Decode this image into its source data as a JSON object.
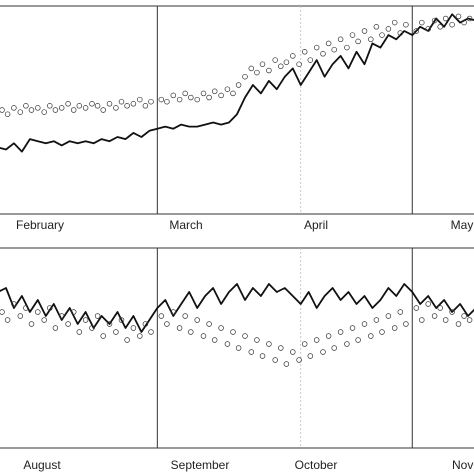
{
  "figure": {
    "colors": {
      "line": "#111111",
      "points": "#333333"
    }
  },
  "chart_data": [
    {
      "type": "line",
      "title": "",
      "xlabel": "",
      "ylabel": "",
      "categories": [
        "February",
        "March",
        "April",
        "May"
      ],
      "xlim": [
        0,
        60
      ],
      "ylim": [
        0,
        100
      ],
      "grid": false,
      "dividers": [
        {
          "at": 20,
          "style": "solid"
        },
        {
          "at": 38,
          "style": "faint"
        },
        {
          "at": 52,
          "style": "solid"
        }
      ],
      "series": [
        {
          "kind": "line",
          "values": [
            [
              0,
              32
            ],
            [
              1,
              31
            ],
            [
              2,
              34
            ],
            [
              3,
              30
            ],
            [
              4,
              36
            ],
            [
              5,
              35
            ],
            [
              6,
              34
            ],
            [
              7,
              35
            ],
            [
              8,
              33
            ],
            [
              9,
              35
            ],
            [
              10,
              34
            ],
            [
              11,
              35
            ],
            [
              12,
              34
            ],
            [
              13,
              36
            ],
            [
              14,
              35
            ],
            [
              15,
              37
            ],
            [
              16,
              36
            ],
            [
              17,
              39
            ],
            [
              18,
              37
            ],
            [
              19,
              40
            ],
            [
              20,
              41
            ],
            [
              21,
              42
            ],
            [
              22,
              41
            ],
            [
              23,
              43
            ],
            [
              24,
              42
            ],
            [
              25,
              42
            ],
            [
              26,
              43
            ],
            [
              27,
              44
            ],
            [
              28,
              43
            ],
            [
              29,
              44
            ],
            [
              30,
              48
            ],
            [
              31,
              56
            ],
            [
              32,
              62
            ],
            [
              33,
              58
            ],
            [
              34,
              64
            ],
            [
              35,
              60
            ],
            [
              36,
              66
            ],
            [
              37,
              70
            ],
            [
              38,
              62
            ],
            [
              39,
              68
            ],
            [
              40,
              74
            ],
            [
              41,
              66
            ],
            [
              42,
              72
            ],
            [
              43,
              76
            ],
            [
              44,
              70
            ],
            [
              45,
              78
            ],
            [
              46,
              72
            ],
            [
              47,
              82
            ],
            [
              48,
              80
            ],
            [
              49,
              86
            ],
            [
              50,
              84
            ],
            [
              51,
              88
            ],
            [
              52,
              86
            ],
            [
              53,
              90
            ],
            [
              54,
              88
            ],
            [
              55,
              94
            ],
            [
              56,
              90
            ],
            [
              57,
              96
            ],
            [
              58,
              92
            ],
            [
              59,
              94
            ],
            [
              60,
              93
            ]
          ]
        },
        {
          "kind": "points",
          "values": [
            [
              0.5,
              50
            ],
            [
              1.2,
              48
            ],
            [
              2,
              51
            ],
            [
              2.8,
              49
            ],
            [
              3.5,
              52
            ],
            [
              4.2,
              50
            ],
            [
              5,
              51
            ],
            [
              5.8,
              49
            ],
            [
              6.5,
              52
            ],
            [
              7.2,
              50
            ],
            [
              8,
              51
            ],
            [
              8.8,
              53
            ],
            [
              9.5,
              50
            ],
            [
              10.2,
              52
            ],
            [
              11,
              51
            ],
            [
              11.8,
              53
            ],
            [
              12.5,
              52
            ],
            [
              13.2,
              50
            ],
            [
              14,
              53
            ],
            [
              14.8,
              51
            ],
            [
              15.5,
              54
            ],
            [
              16.2,
              52
            ],
            [
              17,
              53
            ],
            [
              17.8,
              55
            ],
            [
              18.5,
              52
            ],
            [
              19.2,
              54
            ],
            [
              20.5,
              55
            ],
            [
              21.2,
              54
            ],
            [
              22,
              57
            ],
            [
              22.8,
              55
            ],
            [
              23.5,
              58
            ],
            [
              24.2,
              56
            ],
            [
              25,
              55
            ],
            [
              25.8,
              58
            ],
            [
              26.5,
              56
            ],
            [
              27.2,
              59
            ],
            [
              28,
              57
            ],
            [
              28.8,
              60
            ],
            [
              29.5,
              58
            ],
            [
              30.2,
              62
            ],
            [
              31,
              66
            ],
            [
              31.8,
              70
            ],
            [
              32.5,
              68
            ],
            [
              33.2,
              72
            ],
            [
              34,
              69
            ],
            [
              34.8,
              74
            ],
            [
              35.5,
              71
            ],
            [
              36.2,
              73
            ],
            [
              37,
              76
            ],
            [
              37.8,
              72
            ],
            [
              38.5,
              78
            ],
            [
              39.2,
              74
            ],
            [
              40,
              80
            ],
            [
              40.8,
              77
            ],
            [
              41.5,
              82
            ],
            [
              42.2,
              79
            ],
            [
              43,
              84
            ],
            [
              43.8,
              80
            ],
            [
              44.5,
              86
            ],
            [
              45.2,
              83
            ],
            [
              46,
              88
            ],
            [
              46.8,
              84
            ],
            [
              47.5,
              90
            ],
            [
              48.2,
              86
            ],
            [
              49,
              89
            ],
            [
              49.8,
              92
            ],
            [
              50.5,
              87
            ],
            [
              51.2,
              91
            ],
            [
              52.5,
              88
            ],
            [
              53.2,
              92
            ],
            [
              54,
              89
            ],
            [
              54.8,
              93
            ],
            [
              55.5,
              90
            ],
            [
              56.2,
              94
            ],
            [
              57,
              91
            ],
            [
              57.8,
              95
            ],
            [
              58.5,
              92
            ],
            [
              59.2,
              94
            ]
          ]
        }
      ]
    },
    {
      "type": "line",
      "title": "",
      "xlabel": "",
      "ylabel": "",
      "categories": [
        "August",
        "September",
        "October",
        "Nove"
      ],
      "xlim": [
        0,
        60
      ],
      "ylim": [
        0,
        100
      ],
      "grid": false,
      "dividers": [
        {
          "at": 20,
          "style": "solid"
        },
        {
          "at": 38,
          "style": "faint"
        },
        {
          "at": 52,
          "style": "solid"
        }
      ],
      "series": [
        {
          "kind": "line",
          "values": [
            [
              0,
              78
            ],
            [
              1,
              80
            ],
            [
              2,
              70
            ],
            [
              3,
              76
            ],
            [
              4,
              68
            ],
            [
              5,
              74
            ],
            [
              6,
              66
            ],
            [
              7,
              72
            ],
            [
              8,
              64
            ],
            [
              9,
              70
            ],
            [
              10,
              62
            ],
            [
              11,
              68
            ],
            [
              12,
              60
            ],
            [
              13,
              66
            ],
            [
              14,
              62
            ],
            [
              15,
              68
            ],
            [
              16,
              60
            ],
            [
              17,
              66
            ],
            [
              18,
              58
            ],
            [
              19,
              64
            ],
            [
              20,
              70
            ],
            [
              21,
              74
            ],
            [
              22,
              66
            ],
            [
              23,
              72
            ],
            [
              24,
              78
            ],
            [
              25,
              70
            ],
            [
              26,
              76
            ],
            [
              27,
              80
            ],
            [
              28,
              72
            ],
            [
              29,
              78
            ],
            [
              30,
              82
            ],
            [
              31,
              74
            ],
            [
              32,
              80
            ],
            [
              33,
              76
            ],
            [
              34,
              82
            ],
            [
              35,
              78
            ],
            [
              36,
              80
            ],
            [
              37,
              76
            ],
            [
              38,
              72
            ],
            [
              39,
              78
            ],
            [
              40,
              70
            ],
            [
              41,
              76
            ],
            [
              42,
              80
            ],
            [
              43,
              74
            ],
            [
              44,
              78
            ],
            [
              45,
              72
            ],
            [
              46,
              76
            ],
            [
              47,
              70
            ],
            [
              48,
              74
            ],
            [
              49,
              80
            ],
            [
              50,
              76
            ],
            [
              51,
              82
            ],
            [
              52,
              78
            ],
            [
              53,
              72
            ],
            [
              54,
              76
            ],
            [
              55,
              70
            ],
            [
              56,
              74
            ],
            [
              57,
              68
            ],
            [
              58,
              72
            ],
            [
              59,
              66
            ],
            [
              60,
              70
            ]
          ]
        },
        {
          "kind": "points",
          "values": [
            [
              0.5,
              68
            ],
            [
              1.2,
              64
            ],
            [
              2,
              72
            ],
            [
              2.8,
              66
            ],
            [
              3.5,
              70
            ],
            [
              4.2,
              62
            ],
            [
              5,
              68
            ],
            [
              5.8,
              64
            ],
            [
              6.5,
              70
            ],
            [
              7.2,
              60
            ],
            [
              8,
              66
            ],
            [
              8.8,
              62
            ],
            [
              9.5,
              68
            ],
            [
              10.2,
              58
            ],
            [
              11,
              64
            ],
            [
              11.8,
              60
            ],
            [
              12.5,
              66
            ],
            [
              13.2,
              56
            ],
            [
              14,
              62
            ],
            [
              14.8,
              58
            ],
            [
              15.5,
              64
            ],
            [
              16.2,
              54
            ],
            [
              17,
              60
            ],
            [
              17.8,
              56
            ],
            [
              18.5,
              62
            ],
            [
              19.2,
              58
            ],
            [
              20.5,
              66
            ],
            [
              21.2,
              62
            ],
            [
              22,
              68
            ],
            [
              22.8,
              60
            ],
            [
              23.5,
              66
            ],
            [
              24.2,
              58
            ],
            [
              25,
              64
            ],
            [
              25.8,
              56
            ],
            [
              26.5,
              62
            ],
            [
              27.2,
              54
            ],
            [
              28,
              60
            ],
            [
              28.8,
              52
            ],
            [
              29.5,
              58
            ],
            [
              30.2,
              50
            ],
            [
              31,
              56
            ],
            [
              31.8,
              48
            ],
            [
              32.5,
              54
            ],
            [
              33.2,
              46
            ],
            [
              34,
              52
            ],
            [
              34.8,
              44
            ],
            [
              35.5,
              50
            ],
            [
              36.2,
              42
            ],
            [
              37,
              48
            ],
            [
              37.8,
              44
            ],
            [
              38.5,
              52
            ],
            [
              39.2,
              46
            ],
            [
              40,
              54
            ],
            [
              40.8,
              48
            ],
            [
              41.5,
              56
            ],
            [
              42.2,
              50
            ],
            [
              43,
              58
            ],
            [
              43.8,
              52
            ],
            [
              44.5,
              60
            ],
            [
              45.2,
              54
            ],
            [
              46,
              62
            ],
            [
              46.8,
              56
            ],
            [
              47.5,
              64
            ],
            [
              48.2,
              58
            ],
            [
              49,
              66
            ],
            [
              49.8,
              60
            ],
            [
              50.5,
              68
            ],
            [
              51.2,
              62
            ],
            [
              52.5,
              70
            ],
            [
              53.2,
              64
            ],
            [
              54,
              72
            ],
            [
              54.8,
              66
            ],
            [
              55.5,
              70
            ],
            [
              56.2,
              64
            ],
            [
              57,
              68
            ],
            [
              57.8,
              62
            ],
            [
              58.5,
              66
            ],
            [
              59.2,
              64
            ]
          ]
        }
      ]
    }
  ]
}
